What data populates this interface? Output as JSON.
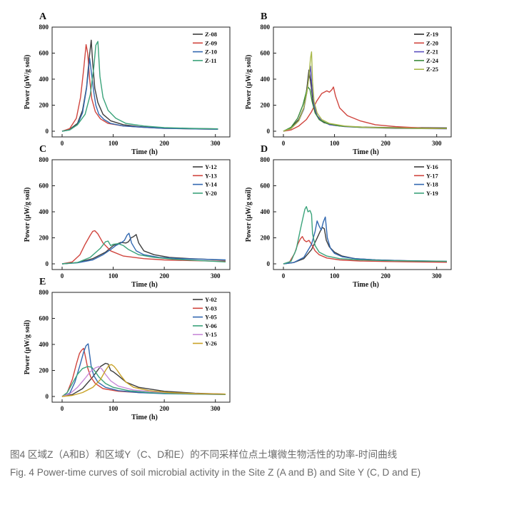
{
  "caption": {
    "chinese": "图4 区域Z（A和B）和区域Y（C、D和E）的不同采样位点土壤微生物活性的功率-时间曲线",
    "english": "Fig. 4 Power-time curves of soil microbial activity in the Site Z (A and B) and Site Y (C, D and E)"
  },
  "chart_data": [
    {
      "panel": "A",
      "type": "line",
      "xlabel": "Time (h)",
      "ylabel": "Power (μW/g soil)",
      "xlim": [
        0,
        320
      ],
      "ylim": [
        0,
        800
      ],
      "xticks": [
        0,
        100,
        200,
        300
      ],
      "yticks": [
        0,
        200,
        400,
        600,
        800
      ],
      "legend_position": "top-right",
      "series": [
        {
          "name": "Z-08",
          "color": "#3d3d3d",
          "x": [
            0,
            15,
            30,
            40,
            48,
            53,
            57,
            60,
            64,
            70,
            80,
            95,
            120,
            150,
            200,
            250,
            305
          ],
          "y": [
            0,
            15,
            60,
            160,
            340,
            560,
            700,
            520,
            330,
            220,
            130,
            80,
            50,
            35,
            25,
            20,
            18
          ]
        },
        {
          "name": "Z-09",
          "color": "#d0453e",
          "x": [
            0,
            15,
            28,
            36,
            42,
            47,
            50,
            54,
            58,
            65,
            75,
            90,
            120,
            160,
            200,
            250,
            305
          ],
          "y": [
            0,
            20,
            100,
            260,
            470,
            665,
            600,
            400,
            250,
            150,
            95,
            60,
            40,
            30,
            22,
            18,
            15
          ]
        },
        {
          "name": "Z-10",
          "color": "#3268b0",
          "x": [
            0,
            15,
            30,
            40,
            48,
            54,
            58,
            62,
            66,
            72,
            82,
            95,
            120,
            160,
            200,
            250,
            305
          ],
          "y": [
            0,
            10,
            50,
            140,
            330,
            560,
            430,
            300,
            200,
            130,
            90,
            60,
            40,
            30,
            22,
            18,
            15
          ]
        },
        {
          "name": "Z-11",
          "color": "#3aa37a",
          "x": [
            0,
            15,
            30,
            45,
            55,
            62,
            66,
            70,
            74,
            80,
            90,
            105,
            125,
            160,
            200,
            250,
            305
          ],
          "y": [
            0,
            10,
            50,
            130,
            280,
            490,
            660,
            690,
            420,
            260,
            160,
            100,
            60,
            40,
            28,
            22,
            18
          ]
        }
      ]
    },
    {
      "panel": "B",
      "type": "line",
      "xlabel": "Time (h)",
      "ylabel": "Power (μW/g soil)",
      "xlim": [
        0,
        320
      ],
      "ylim": [
        0,
        800
      ],
      "xticks": [
        0,
        100,
        200,
        300
      ],
      "yticks": [
        0,
        200,
        400,
        600,
        800
      ],
      "legend_position": "top-right",
      "series": [
        {
          "name": "Z-19",
          "color": "#2a2a2a",
          "x": [
            0,
            15,
            30,
            40,
            46,
            50,
            54,
            58,
            63,
            70,
            80,
            100,
            130,
            170,
            220,
            270,
            320
          ],
          "y": [
            0,
            25,
            90,
            180,
            330,
            470,
            360,
            230,
            140,
            90,
            65,
            45,
            35,
            30,
            28,
            27,
            25
          ]
        },
        {
          "name": "Z-20",
          "color": "#d0453e",
          "x": [
            0,
            15,
            30,
            45,
            55,
            65,
            75,
            85,
            90,
            95,
            98,
            102,
            110,
            125,
            150,
            180,
            220,
            270,
            320
          ],
          "y": [
            0,
            10,
            40,
            90,
            150,
            230,
            290,
            310,
            300,
            320,
            340,
            270,
            180,
            120,
            80,
            50,
            35,
            25,
            20
          ]
        },
        {
          "name": "Z-21",
          "color": "#5a4fbf",
          "x": [
            0,
            15,
            30,
            40,
            46,
            50,
            53,
            56,
            60,
            66,
            75,
            90,
            120,
            160,
            220,
            270,
            320
          ],
          "y": [
            0,
            20,
            80,
            170,
            300,
            420,
            500,
            330,
            200,
            120,
            80,
            50,
            35,
            28,
            22,
            20,
            18
          ]
        },
        {
          "name": "Z-24",
          "color": "#3a8a3a",
          "x": [
            0,
            15,
            28,
            38,
            44,
            48,
            52,
            56,
            62,
            70,
            85,
            110,
            150,
            200,
            260,
            320
          ],
          "y": [
            0,
            30,
            100,
            200,
            290,
            340,
            320,
            230,
            140,
            90,
            60,
            40,
            30,
            25,
            22,
            20
          ]
        },
        {
          "name": "Z-25",
          "color": "#a8b84a",
          "x": [
            0,
            15,
            30,
            40,
            46,
            50,
            53,
            55,
            57,
            60,
            66,
            75,
            90,
            120,
            160,
            220,
            270,
            320
          ],
          "y": [
            0,
            20,
            80,
            180,
            300,
            420,
            560,
            610,
            380,
            230,
            140,
            90,
            60,
            40,
            30,
            25,
            22,
            20
          ]
        }
      ]
    },
    {
      "panel": "C",
      "type": "line",
      "xlabel": "Time (h)",
      "ylabel": "Power (μW/g soil)",
      "xlim": [
        0,
        320
      ],
      "ylim": [
        0,
        800
      ],
      "xticks": [
        0,
        100,
        200,
        300
      ],
      "yticks": [
        0,
        200,
        400,
        600,
        800
      ],
      "legend_position": "top-right",
      "series": [
        {
          "name": "Y-12",
          "color": "#3d3d3d",
          "x": [
            0,
            30,
            60,
            85,
            100,
            115,
            125,
            130,
            135,
            140,
            145,
            150,
            160,
            180,
            210,
            250,
            280,
            320
          ],
          "y": [
            0,
            10,
            40,
            90,
            140,
            165,
            160,
            170,
            200,
            210,
            225,
            160,
            100,
            70,
            50,
            40,
            35,
            28
          ]
        },
        {
          "name": "Y-13",
          "color": "#d0453e",
          "x": [
            0,
            20,
            35,
            45,
            55,
            60,
            64,
            70,
            80,
            95,
            120,
            160,
            200,
            250,
            320
          ],
          "y": [
            0,
            15,
            70,
            150,
            220,
            250,
            255,
            230,
            160,
            100,
            60,
            40,
            30,
            25,
            20
          ]
        },
        {
          "name": "Y-14",
          "color": "#3268b0",
          "x": [
            0,
            30,
            60,
            80,
            95,
            105,
            115,
            122,
            127,
            131,
            136,
            145,
            160,
            190,
            230,
            280,
            320
          ],
          "y": [
            0,
            8,
            30,
            70,
            110,
            140,
            160,
            180,
            220,
            235,
            160,
            100,
            70,
            50,
            40,
            35,
            30
          ]
        },
        {
          "name": "Y-20",
          "color": "#3aa37a",
          "x": [
            0,
            30,
            55,
            75,
            85,
            90,
            95,
            100,
            110,
            120,
            130,
            150,
            180,
            220,
            270,
            320
          ],
          "y": [
            0,
            10,
            50,
            120,
            170,
            175,
            140,
            150,
            155,
            140,
            110,
            70,
            50,
            35,
            25,
            15
          ]
        }
      ]
    },
    {
      "panel": "D",
      "type": "line",
      "xlabel": "Time (h)",
      "ylabel": "Power (μW/g soil)",
      "xlim": [
        0,
        320
      ],
      "ylim": [
        0,
        800
      ],
      "xticks": [
        0,
        100,
        200,
        300
      ],
      "yticks": [
        0,
        200,
        400,
        600,
        800
      ],
      "legend_position": "top-right",
      "series": [
        {
          "name": "Y-16",
          "color": "#3d3d3d",
          "x": [
            0,
            20,
            40,
            55,
            65,
            72,
            76,
            80,
            84,
            90,
            100,
            115,
            140,
            180,
            230,
            280,
            320
          ],
          "y": [
            0,
            10,
            40,
            110,
            190,
            250,
            280,
            270,
            180,
            130,
            90,
            60,
            40,
            30,
            25,
            20,
            18
          ]
        },
        {
          "name": "Y-17",
          "color": "#d0453e",
          "x": [
            0,
            12,
            22,
            28,
            33,
            37,
            41,
            45,
            50,
            55,
            62,
            70,
            85,
            110,
            150,
            200,
            260,
            320
          ],
          "y": [
            0,
            15,
            80,
            150,
            190,
            210,
            180,
            170,
            180,
            150,
            100,
            70,
            45,
            30,
            22,
            18,
            15,
            12
          ]
        },
        {
          "name": "Y-18",
          "color": "#3268b0",
          "x": [
            0,
            20,
            40,
            55,
            62,
            66,
            70,
            74,
            78,
            82,
            86,
            92,
            100,
            115,
            140,
            180,
            230,
            280,
            320
          ],
          "y": [
            0,
            10,
            50,
            150,
            250,
            330,
            290,
            260,
            320,
            360,
            200,
            120,
            80,
            55,
            40,
            30,
            25,
            22,
            20
          ]
        },
        {
          "name": "Y-19",
          "color": "#3aa37a",
          "x": [
            0,
            15,
            25,
            33,
            38,
            42,
            45,
            48,
            52,
            55,
            57,
            62,
            70,
            85,
            110,
            150,
            200,
            260,
            320
          ],
          "y": [
            0,
            20,
            110,
            260,
            350,
            420,
            440,
            400,
            410,
            380,
            230,
            140,
            90,
            60,
            40,
            30,
            25,
            22,
            20
          ]
        }
      ]
    },
    {
      "panel": "E",
      "type": "line",
      "xlabel": "Time (h)",
      "ylabel": "Power (μW/g soil)",
      "xlim": [
        0,
        320
      ],
      "ylim": [
        0,
        800
      ],
      "xticks": [
        0,
        100,
        200,
        300
      ],
      "yticks": [
        0,
        200,
        400,
        600,
        800
      ],
      "legend_position": "top-right",
      "series": [
        {
          "name": "Y-02",
          "color": "#3d3d3d",
          "x": [
            0,
            20,
            40,
            60,
            75,
            85,
            90,
            95,
            100,
            110,
            125,
            150,
            200,
            260,
            320
          ],
          "y": [
            0,
            15,
            60,
            150,
            230,
            255,
            250,
            200,
            190,
            160,
            110,
            70,
            40,
            25,
            18
          ]
        },
        {
          "name": "Y-03",
          "color": "#d0453e",
          "x": [
            0,
            10,
            20,
            28,
            34,
            38,
            42,
            46,
            50,
            56,
            65,
            80,
            110,
            150,
            200,
            260,
            320
          ],
          "y": [
            0,
            30,
            130,
            250,
            330,
            355,
            370,
            300,
            220,
            150,
            100,
            60,
            40,
            30,
            25,
            20,
            18
          ]
        },
        {
          "name": "Y-05",
          "color": "#3268b0",
          "x": [
            0,
            15,
            25,
            35,
            42,
            47,
            51,
            54,
            57,
            62,
            70,
            85,
            110,
            150,
            200,
            260,
            320
          ],
          "y": [
            0,
            25,
            110,
            240,
            340,
            390,
            405,
            320,
            230,
            160,
            110,
            70,
            45,
            30,
            22,
            18,
            15
          ]
        },
        {
          "name": "Y-06",
          "color": "#3aa37a",
          "x": [
            0,
            10,
            20,
            30,
            40,
            50,
            58,
            65,
            72,
            85,
            100,
            130,
            170,
            220,
            270,
            320
          ],
          "y": [
            0,
            30,
            100,
            170,
            215,
            230,
            225,
            190,
            150,
            100,
            70,
            45,
            30,
            22,
            18,
            15
          ]
        },
        {
          "name": "Y-15",
          "color": "#c88ad8",
          "x": [
            0,
            15,
            30,
            45,
            55,
            65,
            72,
            78,
            85,
            95,
            110,
            140,
            180,
            230,
            280,
            320
          ],
          "y": [
            0,
            20,
            70,
            140,
            190,
            220,
            230,
            210,
            170,
            120,
            80,
            50,
            35,
            25,
            20,
            18
          ]
        },
        {
          "name": "Y-26",
          "color": "#c9a226",
          "x": [
            0,
            20,
            40,
            60,
            75,
            85,
            92,
            97,
            102,
            108,
            115,
            125,
            140,
            170,
            210,
            260,
            320
          ],
          "y": [
            0,
            8,
            30,
            70,
            130,
            200,
            240,
            245,
            230,
            200,
            160,
            110,
            70,
            45,
            30,
            22,
            18
          ]
        }
      ]
    }
  ]
}
